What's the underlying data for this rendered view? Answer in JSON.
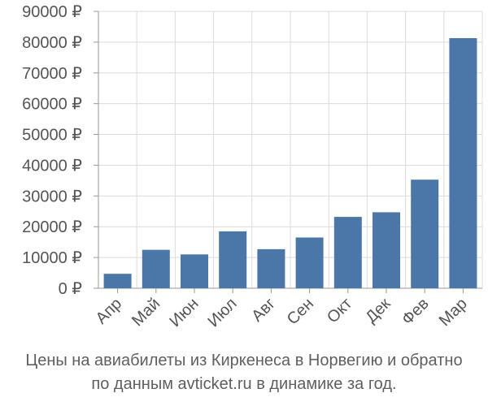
{
  "chart_data": {
    "type": "bar",
    "categories": [
      "Апр",
      "Май",
      "Июн",
      "Июл",
      "Авг",
      "Сен",
      "Окт",
      "Дек",
      "Фев",
      "Мар"
    ],
    "values": [
      4700,
      12500,
      11000,
      18500,
      12700,
      16500,
      23200,
      24700,
      35300,
      81300
    ],
    "ylim": [
      0,
      90000
    ],
    "yticks": [
      0,
      10000,
      20000,
      30000,
      40000,
      50000,
      60000,
      70000,
      80000,
      90000
    ],
    "ytick_labels": [
      "0 ₽",
      "10000 ₽",
      "20000 ₽",
      "30000 ₽",
      "40000 ₽",
      "50000 ₽",
      "60000 ₽",
      "70000 ₽",
      "80000 ₽",
      "90000 ₽"
    ],
    "grid": true,
    "bar_color": "#4a77a8",
    "caption_line1": "Цены на авиабилеты из Киркенеса в Норвегию и обратно",
    "caption_line2": "по данным avticket.ru в динамике за год."
  }
}
